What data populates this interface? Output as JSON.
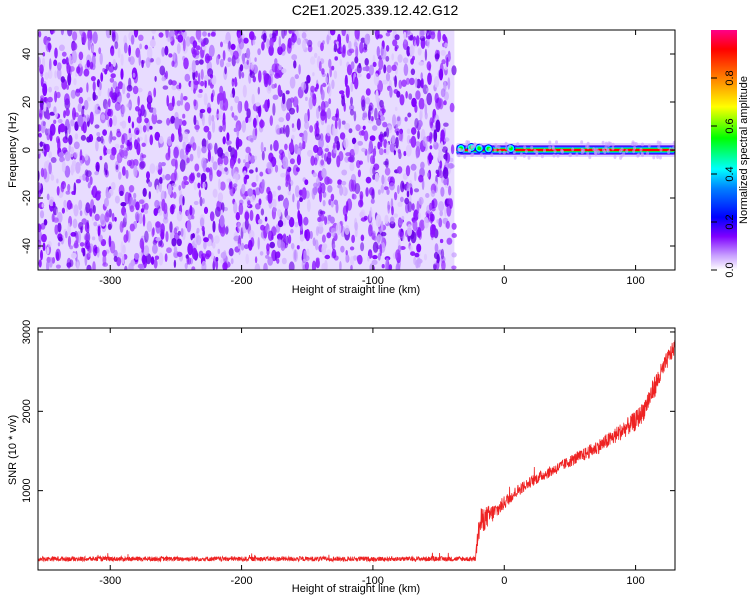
{
  "title": "C2E1.2025.339.12.42.G12",
  "chart_data": [
    {
      "type": "heatmap",
      "xlabel": "Height of straight line (km)",
      "ylabel": "Frequency (Hz)",
      "xlim": [
        -355,
        130
      ],
      "ylim": [
        -50,
        50
      ],
      "xticks": [
        -300,
        -200,
        -100,
        0,
        100
      ],
      "yticks": [
        -40,
        -20,
        0,
        20,
        40
      ],
      "noise_region_x": [
        -355,
        -38
      ],
      "tone_region_x": [
        -38,
        130
      ],
      "tone_frequency": 0,
      "colorbar": {
        "label": "Normalized spectral amplitude",
        "range": [
          0,
          1
        ],
        "ticks": [
          0.0,
          0.2,
          0.4,
          0.6,
          0.8
        ]
      },
      "colormap": [
        "#ffffff",
        "#7f00ff",
        "#0000ff",
        "#00ffff",
        "#00ff00",
        "#ffff00",
        "#ff8000",
        "#ff0000",
        "#ff00ff"
      ]
    },
    {
      "type": "line",
      "xlabel": "Height of straight line (km)",
      "ylabel": "SNR (10 * v/v)",
      "xlim": [
        -355,
        130
      ],
      "ylim": [
        0,
        3050
      ],
      "xticks": [
        -300,
        -200,
        -100,
        0,
        100
      ],
      "yticks": [
        1000,
        2000,
        3000
      ],
      "series": [
        {
          "color": "#ee2222",
          "x": [
            -355,
            -300,
            -250,
            -200,
            -150,
            -100,
            -50,
            -22,
            -20,
            -18,
            -15,
            -10,
            -5,
            0,
            10,
            20,
            30,
            40,
            50,
            60,
            70,
            80,
            90,
            100,
            105,
            110,
            115,
            120,
            125,
            130
          ],
          "y": [
            140,
            140,
            140,
            140,
            140,
            140,
            140,
            140,
            450,
            600,
            650,
            700,
            760,
            850,
            1000,
            1110,
            1200,
            1280,
            1370,
            1450,
            1540,
            1640,
            1760,
            1880,
            1980,
            2150,
            2330,
            2500,
            2680,
            2820
          ],
          "noise_amplitude": [
            60,
            60,
            60,
            60,
            60,
            60,
            60,
            60,
            260,
            350,
            300,
            250,
            200,
            170,
            150,
            140,
            140,
            140,
            150,
            160,
            180,
            200,
            220,
            250,
            260,
            280,
            280,
            250,
            220,
            200
          ]
        }
      ]
    }
  ]
}
